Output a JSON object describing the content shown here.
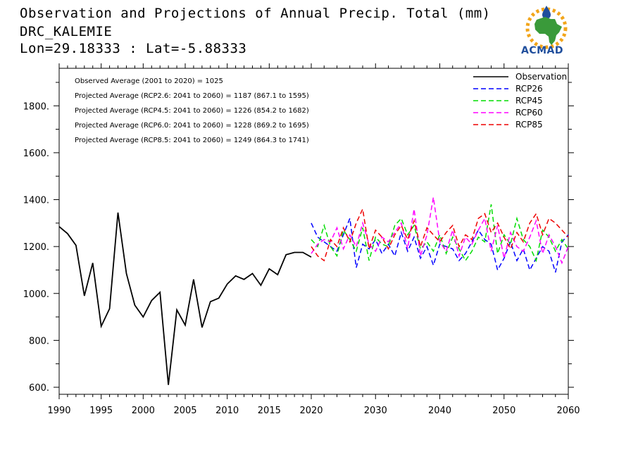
{
  "header": {
    "title": "Observation and Projections of Annual Precip. Total (mm)",
    "station": "DRC_KALEMIE",
    "location": "Lon=29.18333 : Lat=-5.88333"
  },
  "logo": {
    "text": "ACMAD",
    "colors": {
      "africa": "#3a9a3a",
      "sun": "#f2a51a",
      "text": "#1f4e9c"
    }
  },
  "annotations": [
    "Observed Average (2001 to 2020) = 1025",
    "Projected Average (RCP2.6: 2041 to 2060) = 1187 (867.1 to 1595)",
    "Projected Average (RCP4.5: 2041 to 2060) = 1226 (854.2 to 1682)",
    "Projected Average (RCP6.0: 2041 to 2060) = 1228 (869.2 to 1695)",
    "Projected Average (RCP8.5: 2041 to 2060) = 1249 (864.3 to 1741)"
  ],
  "chart_data": {
    "type": "line",
    "title": "Observation and Projections of Annual Precip. Total (mm)",
    "xlim": [
      1990,
      2060
    ],
    "ylim": [
      570,
      1960
    ],
    "x_ticks": [
      "1990",
      "1995",
      "2000",
      "2005",
      "2010",
      "2015",
      "2020",
      "2030",
      "2040",
      "2050",
      "2060"
    ],
    "x_tick_values": [
      1990,
      1995,
      2000,
      2005,
      2010,
      2015,
      2020,
      2030,
      2040,
      2050,
      2060
    ],
    "y_ticks": [
      "600.",
      "800.",
      "1000.",
      "1200.",
      "1400.",
      "1600.",
      "1800."
    ],
    "y_tick_values": [
      600,
      800,
      1000,
      1200,
      1400,
      1600,
      1800
    ],
    "legend_position": "top-right",
    "series": [
      {
        "name": "Observation",
        "color": "#000000",
        "dash": "solid",
        "x": [
          1990,
          1991,
          1992,
          1993,
          1994,
          1995,
          1996,
          1997,
          1998,
          1999,
          2000,
          2001,
          2002,
          2003,
          2004,
          2005,
          2006,
          2007,
          2008,
          2009,
          2010,
          2011,
          2012,
          2013,
          2014,
          2015,
          2016,
          2017,
          2018,
          2019,
          2020
        ],
        "y": [
          1285,
          1255,
          1205,
          990,
          1130,
          860,
          935,
          1345,
          1085,
          950,
          900,
          970,
          1005,
          610,
          930,
          865,
          1060,
          855,
          965,
          980,
          1040,
          1075,
          1060,
          1085,
          1035,
          1105,
          1080,
          1165,
          1175,
          1175,
          1155
        ]
      },
      {
        "name": "RCP26",
        "color": "#0000ff",
        "dash": "dashed",
        "x": [
          2020,
          2021,
          2022,
          2023,
          2024,
          2025,
          2026,
          2027,
          2028,
          2029,
          2030,
          2031,
          2032,
          2033,
          2034,
          2035,
          2036,
          2037,
          2038,
          2039,
          2040,
          2041,
          2042,
          2043,
          2044,
          2045,
          2046,
          2047,
          2048,
          2049,
          2050,
          2051,
          2052,
          2053,
          2054,
          2055,
          2056,
          2057,
          2058,
          2059,
          2060
        ],
        "y": [
          1300,
          1240,
          1220,
          1200,
          1180,
          1250,
          1320,
          1110,
          1210,
          1190,
          1230,
          1170,
          1210,
          1160,
          1260,
          1180,
          1240,
          1150,
          1200,
          1120,
          1210,
          1200,
          1190,
          1140,
          1170,
          1220,
          1270,
          1230,
          1210,
          1100,
          1150,
          1220,
          1140,
          1190,
          1100,
          1150,
          1200,
          1180,
          1090,
          1220,
          1250
        ]
      },
      {
        "name": "RCP45",
        "color": "#00dd00",
        "dash": "dashed",
        "x": [
          2020,
          2021,
          2022,
          2023,
          2024,
          2025,
          2026,
          2027,
          2028,
          2029,
          2030,
          2031,
          2032,
          2033,
          2034,
          2035,
          2036,
          2037,
          2038,
          2039,
          2040,
          2041,
          2042,
          2043,
          2044,
          2045,
          2046,
          2047,
          2048,
          2049,
          2050,
          2051,
          2052,
          2053,
          2054,
          2055,
          2056,
          2057,
          2058,
          2059,
          2060
        ],
        "y": [
          1230,
          1200,
          1290,
          1200,
          1160,
          1270,
          1230,
          1180,
          1280,
          1140,
          1240,
          1210,
          1200,
          1290,
          1320,
          1250,
          1290,
          1190,
          1220,
          1180,
          1250,
          1170,
          1240,
          1190,
          1140,
          1180,
          1240,
          1220,
          1380,
          1170,
          1250,
          1210,
          1320,
          1230,
          1200,
          1140,
          1270,
          1240,
          1180,
          1230,
          1190
        ]
      },
      {
        "name": "RCP60",
        "color": "#ff00ff",
        "dash": "dashed",
        "x": [
          2020,
          2021,
          2022,
          2023,
          2024,
          2025,
          2026,
          2027,
          2028,
          2029,
          2030,
          2031,
          2032,
          2033,
          2034,
          2035,
          2036,
          2037,
          2038,
          2039,
          2040,
          2041,
          2042,
          2043,
          2044,
          2045,
          2046,
          2047,
          2048,
          2049,
          2050,
          2051,
          2052,
          2053,
          2054,
          2055,
          2056,
          2057,
          2058,
          2059,
          2060
        ],
        "y": [
          1170,
          1210,
          1230,
          1220,
          1280,
          1190,
          1250,
          1200,
          1300,
          1210,
          1180,
          1240,
          1220,
          1260,
          1300,
          1190,
          1360,
          1160,
          1250,
          1410,
          1220,
          1180,
          1270,
          1160,
          1240,
          1210,
          1270,
          1320,
          1180,
          1290,
          1150,
          1260,
          1200,
          1180,
          1240,
          1310,
          1170,
          1250,
          1200,
          1130,
          1200
        ]
      },
      {
        "name": "RCP85",
        "color": "#ee0000",
        "dash": "dashed",
        "x": [
          2020,
          2021,
          2022,
          2023,
          2024,
          2025,
          2026,
          2027,
          2028,
          2029,
          2030,
          2031,
          2032,
          2033,
          2034,
          2035,
          2036,
          2037,
          2038,
          2039,
          2040,
          2041,
          2042,
          2043,
          2044,
          2045,
          2046,
          2047,
          2048,
          2049,
          2050,
          2051,
          2052,
          2053,
          2054,
          2055,
          2056,
          2057,
          2058,
          2059,
          2060
        ],
        "y": [
          1200,
          1160,
          1140,
          1230,
          1200,
          1280,
          1220,
          1300,
          1360,
          1190,
          1270,
          1240,
          1190,
          1250,
          1290,
          1230,
          1310,
          1200,
          1280,
          1250,
          1220,
          1260,
          1290,
          1200,
          1250,
          1230,
          1320,
          1340,
          1260,
          1300,
          1240,
          1190,
          1260,
          1220,
          1300,
          1340,
          1250,
          1320,
          1300,
          1270,
          1240
        ]
      }
    ]
  }
}
